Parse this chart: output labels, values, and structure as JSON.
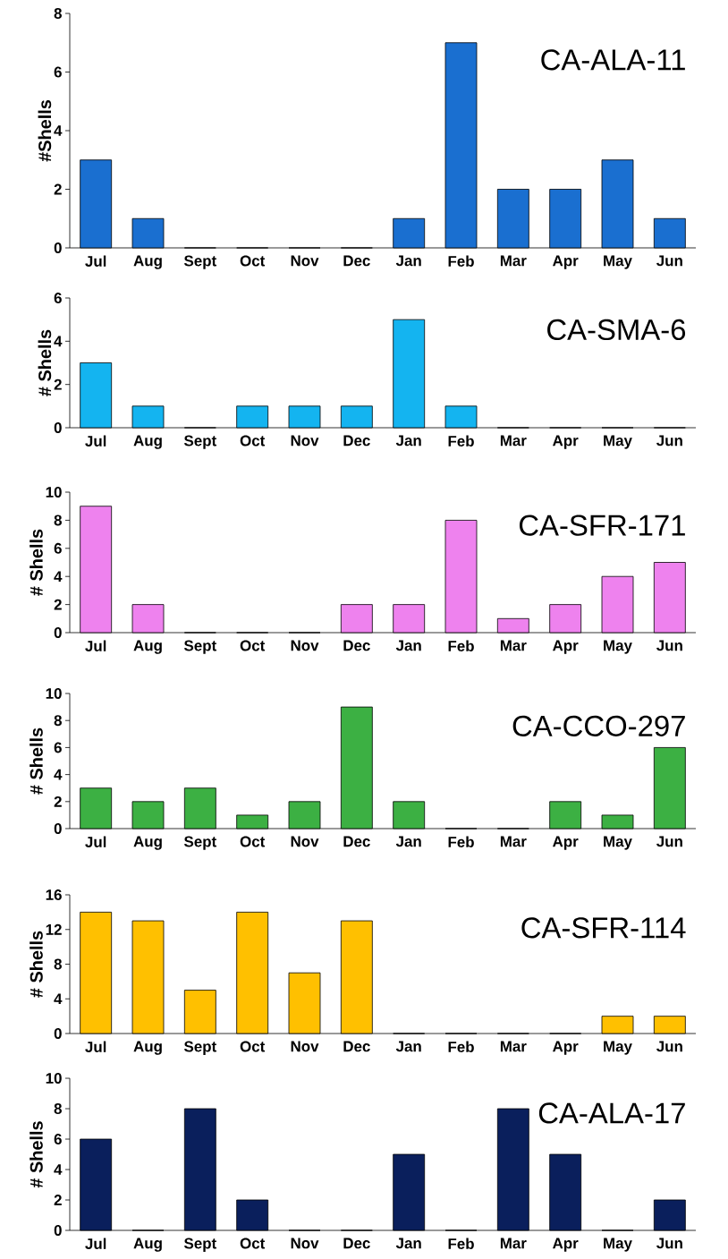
{
  "chart_data": [
    {
      "type": "bar",
      "title": "CA-ALA-11",
      "ylabel": "#Shells",
      "categories": [
        "Jul",
        "Aug",
        "Sept",
        "Oct",
        "Nov",
        "Dec",
        "Jan",
        "Feb",
        "Mar",
        "Apr",
        "May",
        "Jun"
      ],
      "values": [
        3,
        1,
        0,
        0,
        0,
        0,
        1,
        7,
        2,
        2,
        3,
        1
      ],
      "color": "#1a6fd0",
      "ylim": [
        0,
        8
      ],
      "yticks": [
        0,
        2,
        4,
        6,
        8
      ]
    },
    {
      "type": "bar",
      "title": "CA-SMA-6",
      "ylabel": "# Shells",
      "categories": [
        "Jul",
        "Aug",
        "Sept",
        "Oct",
        "Nov",
        "Dec",
        "Jan",
        "Feb",
        "Mar",
        "Apr",
        "May",
        "Jun"
      ],
      "values": [
        3,
        1,
        0,
        1,
        1,
        1,
        5,
        1,
        0,
        0,
        0,
        0
      ],
      "color": "#14b4f0",
      "ylim": [
        0,
        6
      ],
      "yticks": [
        0,
        2,
        4,
        6
      ]
    },
    {
      "type": "bar",
      "title": "CA-SFR-171",
      "ylabel": "# Shells",
      "categories": [
        "Jul",
        "Aug",
        "Sept",
        "Oct",
        "Nov",
        "Dec",
        "Jan",
        "Feb",
        "Mar",
        "Apr",
        "May",
        "Jun"
      ],
      "values": [
        9,
        2,
        0,
        0,
        0,
        2,
        2,
        8,
        1,
        2,
        4,
        5
      ],
      "color": "#ee82ee",
      "ylim": [
        0,
        10
      ],
      "yticks": [
        0,
        2,
        4,
        6,
        8,
        10
      ]
    },
    {
      "type": "bar",
      "title": "CA-CCO-297",
      "ylabel": "# Shells",
      "categories": [
        "Jul",
        "Aug",
        "Sept",
        "Oct",
        "Nov",
        "Dec",
        "Jan",
        "Feb",
        "Mar",
        "Apr",
        "May",
        "Jun"
      ],
      "values": [
        3,
        2,
        3,
        1,
        2,
        9,
        2,
        0,
        0,
        2,
        1,
        6
      ],
      "color": "#3cb043",
      "ylim": [
        0,
        10
      ],
      "yticks": [
        0,
        2,
        4,
        6,
        8,
        10
      ]
    },
    {
      "type": "bar",
      "title": "CA-SFR-114",
      "ylabel": "# Shells",
      "categories": [
        "Jul",
        "Aug",
        "Sept",
        "Oct",
        "Nov",
        "Dec",
        "Jan",
        "Feb",
        "Mar",
        "Apr",
        "May",
        "Jun"
      ],
      "values": [
        14,
        13,
        5,
        14,
        7,
        13,
        0,
        0,
        0,
        0,
        2,
        2
      ],
      "color": "#ffc000",
      "ylim": [
        0,
        16
      ],
      "yticks": [
        0,
        4,
        8,
        12,
        16
      ]
    },
    {
      "type": "bar",
      "title": "CA-ALA-17",
      "ylabel": "# Shells",
      "categories": [
        "Jul",
        "Aug",
        "Sept",
        "Oct",
        "Nov",
        "Dec",
        "Jan",
        "Feb",
        "Mar",
        "Apr",
        "May",
        "Jun"
      ],
      "values": [
        6,
        0,
        8,
        2,
        0,
        0,
        5,
        0,
        8,
        5,
        0,
        2
      ],
      "color": "#0a1f5c",
      "ylim": [
        0,
        10
      ],
      "yticks": [
        0,
        2,
        4,
        6,
        8,
        10
      ]
    }
  ]
}
